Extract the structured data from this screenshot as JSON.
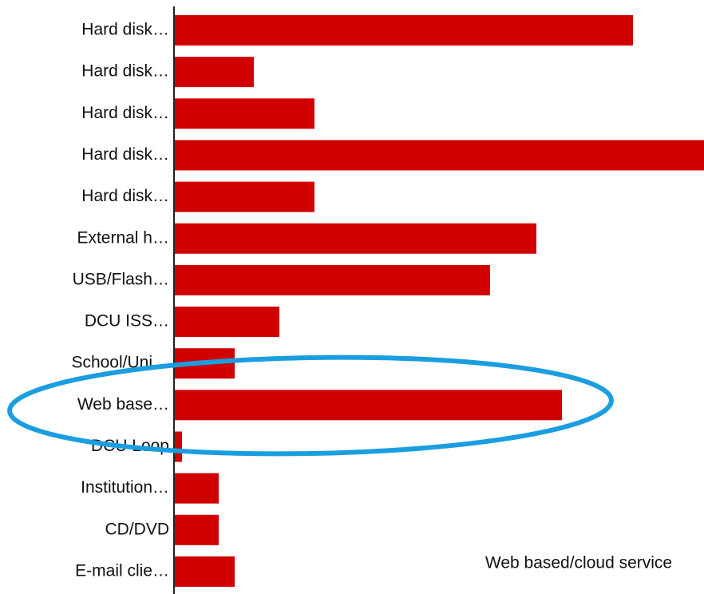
{
  "chart_data": {
    "type": "barh",
    "categories": [
      "Hard disk…",
      "Hard disk…",
      "Hard disk…",
      "Hard disk…",
      "Hard disk…",
      "External h…",
      "USB/Flash…",
      "DCU ISS…",
      "School/Uni…",
      "Web base…",
      "DCU Loop",
      "Institution…",
      "CD/DVD",
      "E-mail clie…"
    ],
    "values": [
      57.5,
      10,
      17.6,
      66.4,
      17.6,
      45.4,
      39.6,
      13.2,
      7.6,
      48.6,
      1,
      5.6,
      5.6,
      7.6
    ],
    "color": "#d10000",
    "xlim": [
      0,
      66.4
    ],
    "annotation": "Web based/cloud service"
  }
}
